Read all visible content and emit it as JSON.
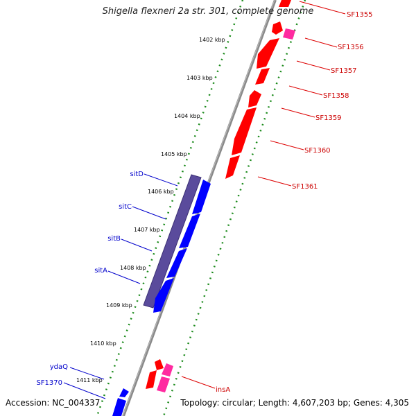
{
  "title": "Shigella flexneri 2a str. 301, complete genome",
  "footer": {
    "accession": "Accession: NC_004337",
    "summary": "Topology: circular; Length: 4,607,203 bp; Genes: 4,305"
  },
  "colors": {
    "backbone": "#888888",
    "forward_gene": "#ff0000",
    "forward_other": "#ff1493",
    "reverse_gene": "#0000ff",
    "operon": "#5a4b9c",
    "ticks": "#008000",
    "forward_label": "#cc0000",
    "reverse_label": "#0000cc"
  },
  "ticks": [
    {
      "label": "1402 kbp",
      "kbp": 1402
    },
    {
      "label": "1403 kbp",
      "kbp": 1403
    },
    {
      "label": "1404 kbp",
      "kbp": 1404
    },
    {
      "label": "1405 kbp",
      "kbp": 1405
    },
    {
      "label": "1406 kbp",
      "kbp": 1406
    },
    {
      "label": "1407 kbp",
      "kbp": 1407
    },
    {
      "label": "1408 kbp",
      "kbp": 1408
    },
    {
      "label": "1409 kbp",
      "kbp": 1409
    },
    {
      "label": "1410 kbp",
      "kbp": 1410
    },
    {
      "label": "1411 kbp",
      "kbp": 1411
    }
  ],
  "forward_genes": [
    {
      "name": "SF1355"
    },
    {
      "name": "SF1356"
    },
    {
      "name": "SF1357"
    },
    {
      "name": "SF1358"
    },
    {
      "name": "SF1359"
    },
    {
      "name": "SF1360"
    },
    {
      "name": "SF1361"
    },
    {
      "name": "insA"
    }
  ],
  "reverse_genes": [
    {
      "name": "sitD"
    },
    {
      "name": "sitC"
    },
    {
      "name": "sitB"
    },
    {
      "name": "sitA"
    },
    {
      "name": "ydaQ"
    },
    {
      "name": "SF1370"
    }
  ]
}
